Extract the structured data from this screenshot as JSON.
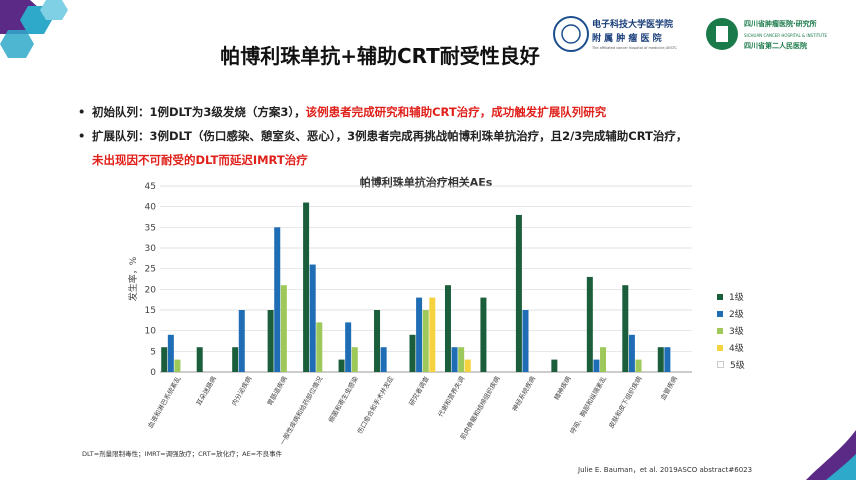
{
  "slide": {
    "title": "帕博利珠单抗+辅助CRT耐受性良好",
    "bullets": [
      {
        "black": "初始队列：1例DLT为3级发烧（方案3），",
        "red": "该例患者完成研究和辅助CRT治疗，成功触发扩展队列研究"
      },
      {
        "black": "扩展队列：3例DLT（伤口感染、憩室炎、恶心），3例患者完成再挑战帕博利珠单抗治疗，且2/3完成辅助CRT治疗，",
        "red": "未出现因不可耐受的DLT而延迟IMRT治疗"
      }
    ],
    "footnote": "DLT=剂量限制毒性；IMRT=调强放疗；CRT=放化疗；AE=不良事件",
    "citation": "Julie E. Bauman，et al. 2019ASCO abstract#6023"
  },
  "logos": {
    "uestc_name": "电子科技大学医学院",
    "uestc_sub": "附 属 肿 瘤 医 院",
    "uestc_en": "The affiliated cancer hospital of medicine,UESTC",
    "sccc_name1": "四川省肿瘤医院·研究所",
    "sccc_name2": "四川省第二人民医院",
    "sccc_en": "SICHUAN CANCER HOSPITAL & INSTITUTE"
  },
  "colors": {
    "grade1": "#1b5e3c",
    "grade2": "#1f6db5",
    "grade3": "#9ec95a",
    "grade4": "#f5d33f",
    "grade5": "#ffffff",
    "accent_red": "#e0201a",
    "corner_teal": "#2fa9c9",
    "corner_purple": "#5b2a86"
  },
  "chart_data": {
    "type": "bar",
    "title": "帕博利珠单抗治疗相关AEs",
    "ylabel": "发生率，%",
    "ylim": [
      0,
      45
    ],
    "yticks": [
      0,
      5,
      10,
      15,
      20,
      25,
      30,
      35,
      40,
      45
    ],
    "grid": true,
    "legend_position": "right",
    "categories": [
      "血液和淋巴系统紊乱",
      "耳朵迷路病",
      "内分泌疾病",
      "胃肠道疾病",
      "一般性疾病和给药部位情况",
      "细菌和寄生虫感染",
      "伤口愈合和手术并发症",
      "研究者调查",
      "代谢和营养失调",
      "肌肉骨骼和结缔组织疾病",
      "神经系统疾病",
      "精神疾病",
      "呼吸、胸部和纵隔紊乱",
      "皮肤和皮下组织疾病",
      "血管疾病"
    ],
    "series": [
      {
        "name": "1级",
        "values": [
          6,
          6,
          6,
          15,
          41,
          3,
          15,
          9,
          21,
          18,
          38,
          3,
          23,
          21,
          6
        ]
      },
      {
        "name": "2级",
        "values": [
          9,
          0,
          15,
          35,
          26,
          12,
          6,
          18,
          6,
          0,
          15,
          0,
          3,
          9,
          6
        ]
      },
      {
        "name": "3级",
        "values": [
          3,
          0,
          0,
          21,
          12,
          6,
          0,
          15,
          6,
          0,
          0,
          0,
          6,
          3,
          0
        ]
      },
      {
        "name": "4级",
        "values": [
          0,
          0,
          0,
          0,
          0,
          0,
          0,
          18,
          3,
          0,
          0,
          0,
          0,
          0,
          0
        ]
      },
      {
        "name": "5级",
        "values": [
          0,
          0,
          0,
          0,
          0,
          0,
          0,
          0,
          0,
          0,
          0,
          0,
          0,
          0,
          0
        ]
      }
    ]
  }
}
